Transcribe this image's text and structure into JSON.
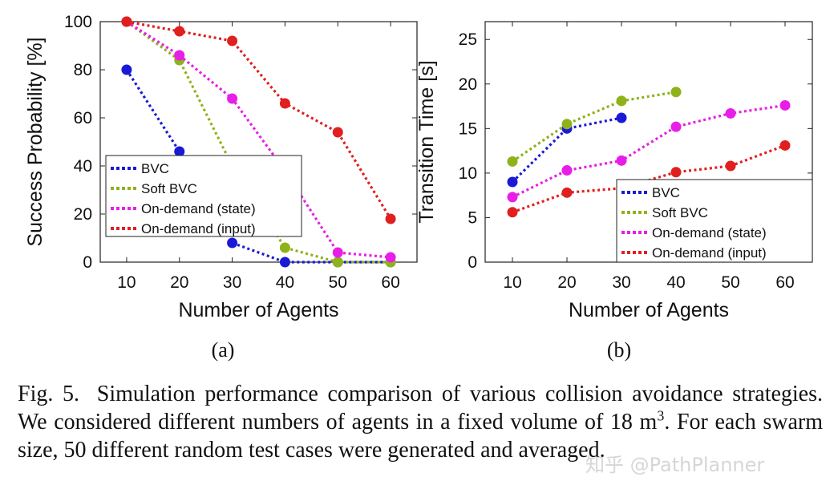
{
  "chart_data": [
    {
      "type": "line",
      "panel_label": "(a)",
      "xlabel": "Number of Agents",
      "ylabel": "Success Probability [%]",
      "xlim": [
        5,
        65
      ],
      "ylim": [
        0,
        100
      ],
      "xticks": [
        10,
        20,
        30,
        40,
        50,
        60
      ],
      "yticks": [
        0,
        20,
        40,
        60,
        80,
        100
      ],
      "legend": "left-middle",
      "series": [
        {
          "name": "BVC",
          "color": "#1a1ad6",
          "x": [
            10,
            20,
            30,
            40,
            50,
            60
          ],
          "y": [
            80,
            46,
            8,
            0,
            0,
            0
          ]
        },
        {
          "name": "Soft BVC",
          "color": "#8fb21a",
          "x": [
            10,
            20,
            30,
            40,
            50,
            60
          ],
          "y": [
            100,
            84,
            40,
            6,
            0,
            0
          ]
        },
        {
          "name": "On-demand (state)",
          "color": "#e81ee8",
          "x": [
            10,
            20,
            30,
            40,
            50,
            60
          ],
          "y": [
            100,
            86,
            68,
            38,
            4,
            2
          ]
        },
        {
          "name": "On-demand (input)",
          "color": "#e0201e",
          "x": [
            10,
            20,
            30,
            40,
            50,
            60
          ],
          "y": [
            100,
            96,
            92,
            66,
            54,
            18
          ]
        }
      ]
    },
    {
      "type": "line",
      "panel_label": "(b)",
      "xlabel": "Number of Agents",
      "ylabel": "Transition Time [s]",
      "xlim": [
        5,
        65
      ],
      "ylim": [
        0,
        27
      ],
      "xticks": [
        10,
        20,
        30,
        40,
        50,
        60
      ],
      "yticks": [
        0,
        5,
        10,
        15,
        20,
        25
      ],
      "legend": "bottom-right",
      "series": [
        {
          "name": "BVC",
          "color": "#1a1ad6",
          "x": [
            10,
            20,
            30
          ],
          "y": [
            9.0,
            15.0,
            16.2
          ]
        },
        {
          "name": "Soft BVC",
          "color": "#8fb21a",
          "x": [
            10,
            20,
            30,
            40
          ],
          "y": [
            11.3,
            15.5,
            18.1,
            19.1
          ]
        },
        {
          "name": "On-demand (state)",
          "color": "#e81ee8",
          "x": [
            10,
            20,
            30,
            40,
            50,
            60
          ],
          "y": [
            7.3,
            10.3,
            11.4,
            15.2,
            16.7,
            17.6
          ]
        },
        {
          "name": "On-demand (input)",
          "color": "#e0201e",
          "x": [
            10,
            20,
            30,
            40,
            50,
            60
          ],
          "y": [
            5.6,
            7.8,
            8.3,
            10.1,
            10.8,
            13.1
          ]
        }
      ]
    }
  ],
  "caption": {
    "fig_label": "Fig. 5.",
    "text_before_sup": "Simulation performance comparison of various collision avoidance strategies. We considered different numbers of agents in a fixed volume of 18 m",
    "sup": "3",
    "text_after_sup": ". For each swarm size, 50 different random test cases were generated and averaged."
  },
  "watermark": "知乎 @PathPlanner"
}
